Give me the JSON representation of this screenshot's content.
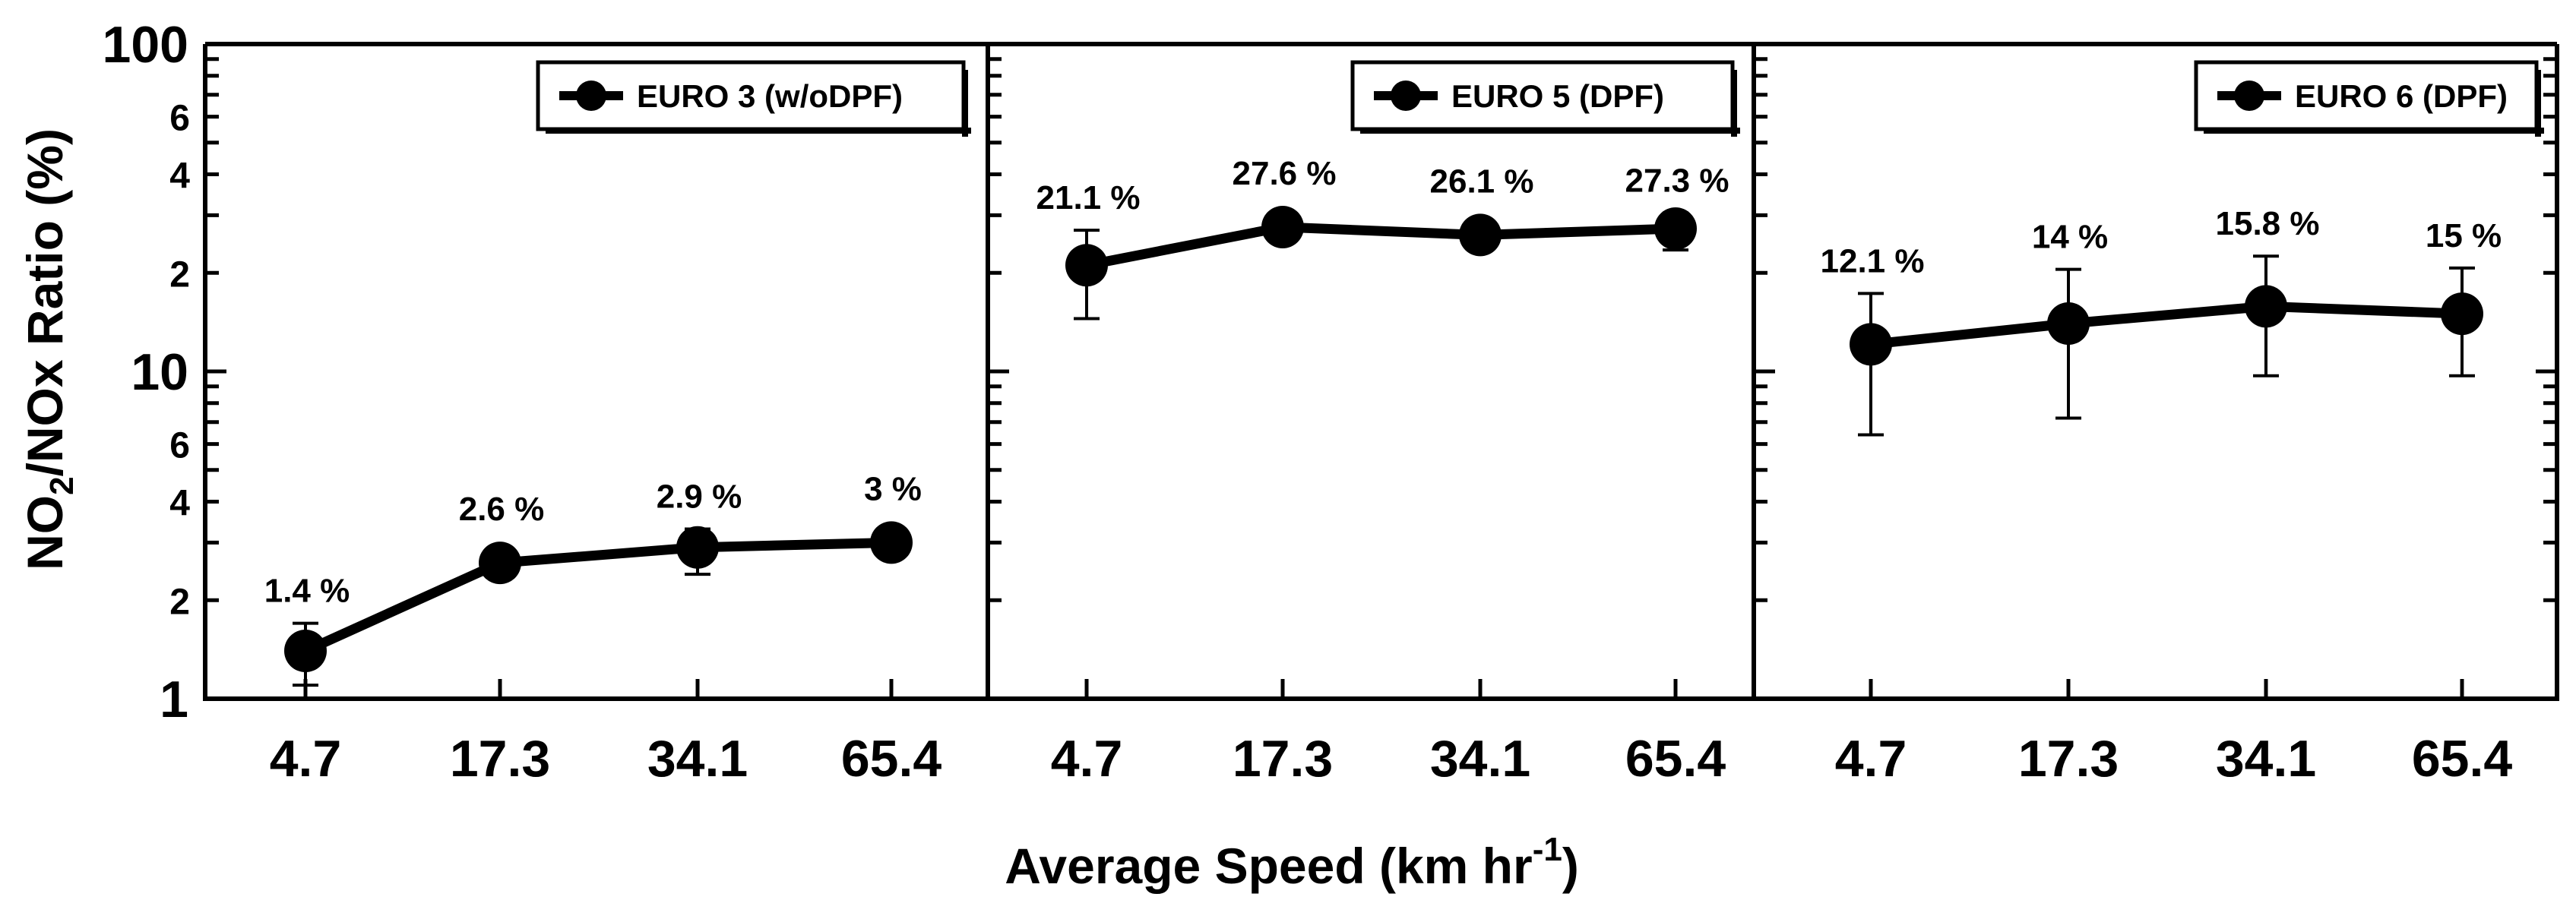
{
  "chart_data": {
    "type": "line",
    "y_scale": "log",
    "ylim": [
      1,
      100
    ],
    "y_ticks_major": [
      1,
      10,
      100
    ],
    "y_ticks_labeled_minor": [
      2,
      4,
      6
    ],
    "ylabel": {
      "base": "NO",
      "sub": "2",
      "rest": "/NOx Ratio (%)"
    },
    "xlabel": {
      "base": "Average Speed (km hr",
      "sup": "-1",
      "end": ")"
    },
    "categories": [
      "4.7",
      "17.3",
      "34.1",
      "65.4"
    ],
    "grid": false,
    "legend_placement": "top-right",
    "panels": [
      {
        "series_name": "EURO 3 (w/oDPF)",
        "values": [
          1.4,
          2.6,
          2.9,
          3.0
        ],
        "errors": [
          [
            1.1,
            1.7
          ],
          [
            2.6,
            2.6
          ],
          [
            2.4,
            3.3
          ],
          [
            3.0,
            3.0
          ]
        ],
        "labels": [
          "1.4 %",
          "2.6 %",
          "2.9 %",
          "3 %"
        ]
      },
      {
        "series_name": "EURO 5 (DPF)",
        "values": [
          21.1,
          27.6,
          26.1,
          27.3
        ],
        "errors": [
          [
            14.5,
            27.0
          ],
          [
            27.6,
            27.6
          ],
          [
            26.1,
            26.1
          ],
          [
            23.5,
            30.5
          ]
        ],
        "labels": [
          "21.1 %",
          "27.6 %",
          "26.1 %",
          "27.3 %"
        ]
      },
      {
        "series_name": "EURO 6 (DPF)",
        "values": [
          12.1,
          14.0,
          15.8,
          15.0
        ],
        "errors": [
          [
            6.4,
            17.3
          ],
          [
            7.2,
            20.5
          ],
          [
            9.7,
            22.5
          ],
          [
            9.7,
            20.7
          ]
        ],
        "labels": [
          "12.1 %",
          "14 %",
          "15.8 %",
          "15 %"
        ]
      }
    ]
  }
}
